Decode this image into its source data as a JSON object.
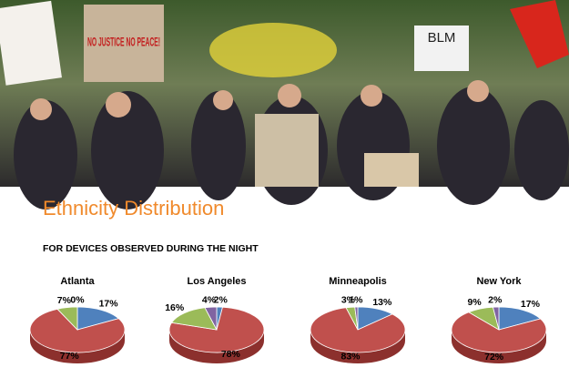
{
  "photo": {
    "signs": [
      "NO JUSTICE NO PEACE!",
      "BLM"
    ]
  },
  "header": {
    "title": "Ethnicity Distribution",
    "subtitle": "FOR DEVICES OBSERVED DURING THE NIGHT"
  },
  "chart_data": [
    {
      "type": "pie",
      "title": "Atlanta",
      "values": [
        17,
        77,
        7,
        0
      ],
      "value_labels": [
        "17%",
        "77%",
        "7%",
        "0%"
      ],
      "colors": [
        "#4f81bd",
        "#c0504d",
        "#9bbb59",
        "#8064a2"
      ]
    },
    {
      "type": "pie",
      "title": "Los Angeles",
      "values": [
        2,
        78,
        16,
        4
      ],
      "value_labels": [
        "2%",
        "78%",
        "16%",
        "4%"
      ],
      "colors": [
        "#4f81bd",
        "#c0504d",
        "#9bbb59",
        "#8064a2"
      ]
    },
    {
      "type": "pie",
      "title": "Minneapolis",
      "values": [
        13,
        83,
        3,
        1
      ],
      "value_labels": [
        "13%",
        "83%",
        "3%",
        "1%"
      ],
      "colors": [
        "#4f81bd",
        "#c0504d",
        "#9bbb59",
        "#8064a2"
      ]
    },
    {
      "type": "pie",
      "title": "New York",
      "values": [
        17,
        72,
        9,
        2
      ],
      "value_labels": [
        "17%",
        "72%",
        "9%",
        "2%"
      ],
      "colors": [
        "#4f81bd",
        "#c0504d",
        "#9bbb59",
        "#8064a2"
      ]
    }
  ]
}
